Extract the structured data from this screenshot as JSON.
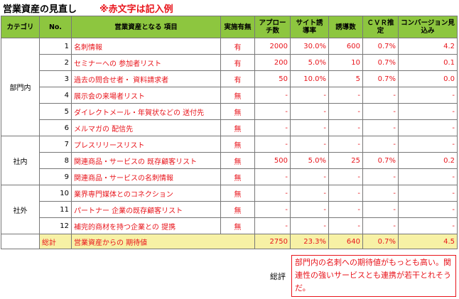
{
  "header": {
    "title": "営業資産の見直し",
    "note": "※赤文字は記入例"
  },
  "table": {
    "columns": [
      "カテゴリ",
      "No.",
      "営業資産となる 項目",
      "実施有無",
      "アプローチ数",
      "サイト誘導率",
      "誘導数",
      "ＣＶＲ推定",
      "コンバージョン見込み"
    ],
    "groups": [
      {
        "label": "部門内",
        "rows": [
          [
            "1",
            "名刺情報",
            "有",
            "2000",
            "30.0%",
            "600",
            "0.7%",
            "4.2"
          ],
          [
            "2",
            "セミナーへの 参加者リスト",
            "有",
            "200",
            "5.0%",
            "10",
            "0.7%",
            "0.1"
          ],
          [
            "3",
            "過去の問合せ者・ 資料請求者",
            "有",
            "50",
            "10.0%",
            "5",
            "0.7%",
            "0.0"
          ],
          [
            "4",
            "展示会の来場者リスト",
            "無",
            "-",
            "-",
            "-",
            "-",
            "-"
          ],
          [
            "5",
            "ダイレクトメール・年賀状などの 送付先",
            "無",
            "-",
            "-",
            "-",
            "-",
            "-"
          ],
          [
            "6",
            "メルマガの 配信先",
            "無",
            "-",
            "-",
            "-",
            "-",
            "-"
          ]
        ]
      },
      {
        "label": "社内",
        "rows": [
          [
            "7",
            "プレスリリースリスト",
            "無",
            "-",
            "-",
            "-",
            "-",
            "-"
          ],
          [
            "8",
            "関連商品・サービスの 既存顧客リスト",
            "無",
            "500",
            "5.0%",
            "25",
            "0.7%",
            "0.2"
          ],
          [
            "9",
            "関連商品・サービスの名刺情報",
            "無",
            "-",
            "-",
            "-",
            "-",
            "-"
          ]
        ]
      },
      {
        "label": "社外",
        "rows": [
          [
            "10",
            "業界専門媒体とのコネクション",
            "無",
            "-",
            "-",
            "-",
            "-",
            "-"
          ],
          [
            "11",
            "パートナー 企業の既存顧客リスト",
            "無",
            "-",
            "-",
            "-",
            "-",
            "-"
          ],
          [
            "12",
            "補完的商材を持つ企業との 提携",
            "無",
            "-",
            "-",
            "-",
            "-",
            "-"
          ]
        ]
      }
    ],
    "total": [
      "総計",
      "営業資産からの 期待値",
      "2750",
      "23.3%",
      "640",
      "0.7%",
      "4.5"
    ]
  },
  "review": {
    "label": "総評",
    "text": "部門内の名刺への期待値がもっとも高い。関連性の強いサービスとも連携が若干とれそうだ。"
  }
}
